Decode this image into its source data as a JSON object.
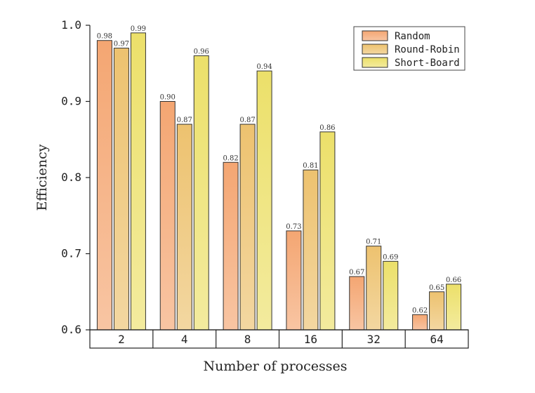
{
  "chart_data": {
    "type": "bar",
    "title": "",
    "xlabel": "Number of processes",
    "ylabel": "Efficiency",
    "categories": [
      "2",
      "4",
      "8",
      "16",
      "32",
      "64"
    ],
    "ylim": [
      0.6,
      1.0
    ],
    "yticks": [
      "0.6",
      "0.7",
      "0.8",
      "0.9",
      "1.0"
    ],
    "legend_position": "top-right",
    "grid": false,
    "series": [
      {
        "name": "Random",
        "color": "#F4A672",
        "values": [
          0.98,
          0.9,
          0.82,
          0.73,
          0.67,
          0.62
        ],
        "labels": [
          "0.98",
          "0.90",
          "0.82",
          "0.73",
          "0.67",
          "0.62"
        ]
      },
      {
        "name": "Round-Robin",
        "color": "#EDC26F",
        "values": [
          0.97,
          0.87,
          0.87,
          0.81,
          0.71,
          0.65
        ],
        "labels": [
          "0.97",
          "0.87",
          "0.87",
          "0.81",
          "0.71",
          "0.65"
        ]
      },
      {
        "name": "Short-Board",
        "color": "#ECE06A",
        "values": [
          0.99,
          0.96,
          0.94,
          0.86,
          0.69,
          0.66
        ],
        "labels": [
          "0.99",
          "0.96",
          "0.94",
          "0.86",
          "0.69",
          "0.66"
        ]
      }
    ]
  }
}
